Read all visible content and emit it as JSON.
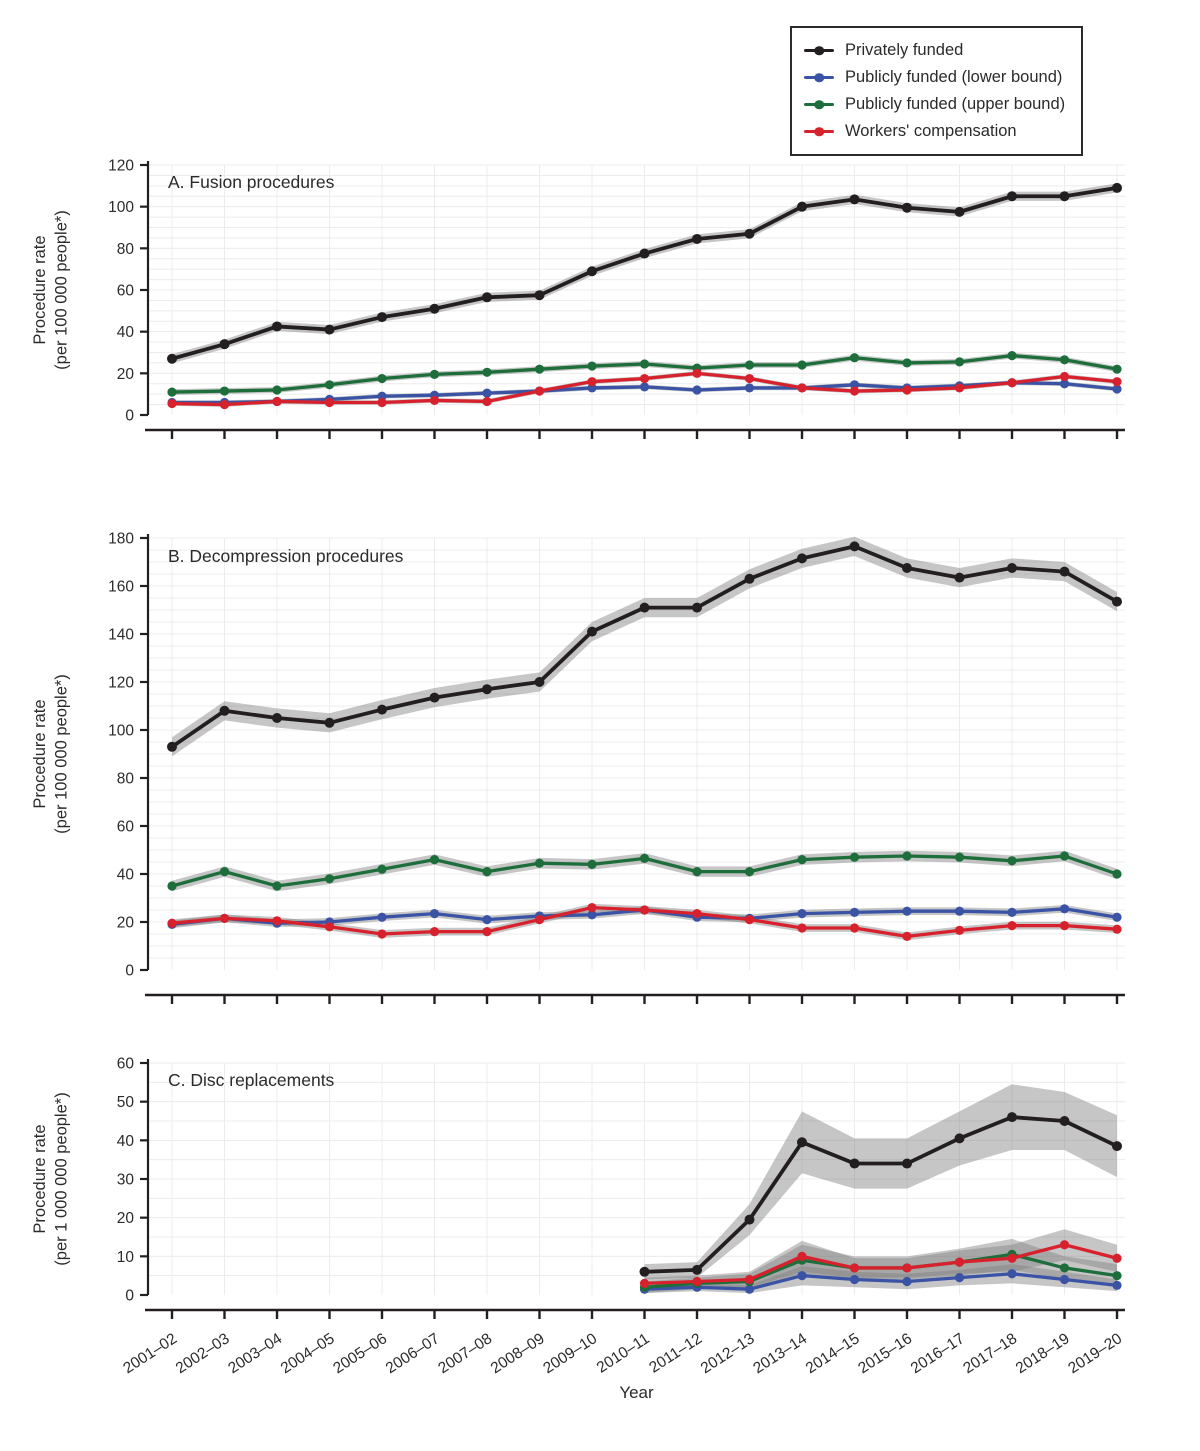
{
  "figure": {
    "xlabel": "Year",
    "x_categories": [
      "2001–02",
      "2002–03",
      "2003–04",
      "2004–05",
      "2005–06",
      "2006–07",
      "2007–08",
      "2008–09",
      "2009–10",
      "2010–11",
      "2011–12",
      "2012–13",
      "2013–14",
      "2014–15",
      "2015–16",
      "2016–17",
      "2017–18",
      "2018–19",
      "2019–20"
    ]
  },
  "colors": {
    "black": "#231f20",
    "blue": "#3a53a4",
    "green": "#1e6e3c",
    "red": "#d7222e",
    "band": "#808080",
    "grid": "#ececec",
    "axis": "#231f20",
    "text": "#2b2b2b"
  },
  "legend": {
    "items": [
      {
        "label": "Privately funded",
        "color": "#231f20"
      },
      {
        "label": "Publicly funded (lower bound)",
        "color": "#3a53a4"
      },
      {
        "label": "Publicly funded (upper bound)",
        "color": "#1e6e3c"
      },
      {
        "label": "Workers' compensation",
        "color": "#d7222e"
      }
    ]
  },
  "chart_data": [
    {
      "type": "line",
      "title": "A. Fusion procedures",
      "ylabel_lines": [
        "Procedure rate",
        "(per 100 000 people*)"
      ],
      "ylim": [
        0,
        120
      ],
      "ytick_step": 20,
      "categories": [
        "2001–02",
        "2002–03",
        "2003–04",
        "2004–05",
        "2005–06",
        "2006–07",
        "2007–08",
        "2008–09",
        "2009–10",
        "2010–11",
        "2011–12",
        "2012–13",
        "2013–14",
        "2014–15",
        "2015–16",
        "2016–17",
        "2017–18",
        "2018–19",
        "2019–20"
      ],
      "series": [
        {
          "name": "Privately funded",
          "color": "#231f20",
          "values": [
            27,
            34,
            42.5,
            41,
            47,
            51,
            56.5,
            57.5,
            69,
            77.5,
            84.5,
            87,
            100,
            103.5,
            99.5,
            97.5,
            105,
            105,
            109
          ],
          "ci_halfwidth": 2.2
        },
        {
          "name": "Publicly funded (lower bound)",
          "color": "#3a53a4",
          "values": [
            6,
            6,
            6.5,
            7.5,
            9,
            9.5,
            10.5,
            11.5,
            13,
            13.5,
            12,
            13,
            13,
            14.5,
            13,
            14,
            15.5,
            15,
            12.5
          ],
          "ci_halfwidth": 1.1
        },
        {
          "name": "Publicly funded (upper bound)",
          "color": "#1e6e3c",
          "values": [
            11,
            11.5,
            12,
            14.5,
            17.5,
            19.5,
            20.5,
            22,
            23.5,
            24.5,
            22.5,
            24,
            24,
            27.5,
            25,
            25.5,
            28.5,
            26.5,
            22
          ],
          "ci_halfwidth": 1.4
        },
        {
          "name": "Workers' compensation",
          "color": "#d7222e",
          "values": [
            5.5,
            5,
            6.5,
            6,
            6,
            7,
            6.5,
            11.5,
            16,
            17.5,
            20,
            17.5,
            13,
            11.5,
            12,
            13,
            15.5,
            18.5,
            16
          ],
          "ci_halfwidth": 1.1
        }
      ]
    },
    {
      "type": "line",
      "title": "B. Decompression procedures",
      "ylabel_lines": [
        "Procedure rate",
        "(per 100 000 people*)"
      ],
      "ylim": [
        0,
        180
      ],
      "ytick_step": 20,
      "categories": [
        "2001–02",
        "2002–03",
        "2003–04",
        "2004–05",
        "2005–06",
        "2006–07",
        "2007–08",
        "2008–09",
        "2009–10",
        "2010–11",
        "2011–12",
        "2012–13",
        "2013–14",
        "2014–15",
        "2015–16",
        "2016–17",
        "2017–18",
        "2018–19",
        "2019–20"
      ],
      "series": [
        {
          "name": "Privately funded",
          "color": "#231f20",
          "values": [
            93,
            108,
            105,
            103,
            108.5,
            113.5,
            117,
            120,
            141,
            151,
            151,
            163,
            171.5,
            176.5,
            167.5,
            163.5,
            167.5,
            166,
            153.5
          ],
          "ci_halfwidth": 4
        },
        {
          "name": "Publicly funded (lower bound)",
          "color": "#3a53a4",
          "values": [
            19,
            21.5,
            19.5,
            20,
            22,
            23.5,
            21,
            22.5,
            23,
            25,
            22,
            21.5,
            23.5,
            24,
            24.5,
            24.5,
            24,
            25.5,
            22
          ],
          "ci_halfwidth": 1.6
        },
        {
          "name": "Publicly funded (upper bound)",
          "color": "#1e6e3c",
          "values": [
            35,
            41,
            35,
            38,
            42,
            46,
            41,
            44.5,
            44,
            46.5,
            41,
            41,
            46,
            47,
            47.5,
            47,
            45.5,
            47.5,
            40
          ],
          "ci_halfwidth": 2.2
        },
        {
          "name": "Workers' compensation",
          "color": "#d7222e",
          "values": [
            19.5,
            21.5,
            20.5,
            18,
            15,
            16,
            16,
            21,
            26,
            25,
            23.5,
            21,
            17.5,
            17.5,
            14,
            16.5,
            18.5,
            18.5,
            17
          ],
          "ci_halfwidth": 1.6
        }
      ]
    },
    {
      "type": "line",
      "title": "C. Disc replacements",
      "ylabel_lines": [
        "Procedure rate",
        "(per 1 000 000 people*)"
      ],
      "ylim": [
        0,
        60
      ],
      "ytick_step": 10,
      "categories": [
        "2001–02",
        "2002–03",
        "2003–04",
        "2004–05",
        "2005–06",
        "2006–07",
        "2007–08",
        "2008–09",
        "2009–10",
        "2010–11",
        "2011–12",
        "2012–13",
        "2013–14",
        "2014–15",
        "2015–16",
        "2016–17",
        "2017–18",
        "2018–19",
        "2019–20"
      ],
      "series": [
        {
          "name": "Privately funded",
          "color": "#231f20",
          "values": [
            null,
            null,
            null,
            null,
            null,
            null,
            null,
            null,
            null,
            6,
            6.5,
            19.5,
            39.5,
            34,
            34,
            40.5,
            46,
            45,
            38.5
          ],
          "ci_halfwidth": [
            null,
            null,
            null,
            null,
            null,
            null,
            null,
            null,
            null,
            2,
            2,
            4,
            8,
            6.5,
            6.5,
            7,
            8.5,
            7.5,
            8
          ]
        },
        {
          "name": "Publicly funded (lower bound)",
          "color": "#3a53a4",
          "values": [
            null,
            null,
            null,
            null,
            null,
            null,
            null,
            null,
            null,
            1.5,
            2,
            1.5,
            5,
            4,
            3.5,
            4.5,
            5.5,
            4,
            2.5
          ],
          "ci_halfwidth": [
            null,
            null,
            null,
            null,
            null,
            null,
            null,
            null,
            null,
            1,
            1,
            1,
            2.5,
            2,
            2,
            2,
            2.5,
            2,
            1.5
          ]
        },
        {
          "name": "Publicly funded (upper bound)",
          "color": "#1e6e3c",
          "values": [
            null,
            null,
            null,
            null,
            null,
            null,
            null,
            null,
            null,
            2,
            3,
            3.5,
            9,
            7,
            7,
            8.5,
            10.5,
            7,
            5
          ],
          "ci_halfwidth": [
            null,
            null,
            null,
            null,
            null,
            null,
            null,
            null,
            null,
            1.5,
            1.5,
            2,
            4,
            3,
            3,
            3.5,
            4,
            3,
            3
          ]
        },
        {
          "name": "Workers' compensation",
          "color": "#d7222e",
          "values": [
            null,
            null,
            null,
            null,
            null,
            null,
            null,
            null,
            null,
            3,
            3.5,
            4,
            10,
            7,
            7,
            8.5,
            9.5,
            13,
            9.5
          ],
          "ci_halfwidth": [
            null,
            null,
            null,
            null,
            null,
            null,
            null,
            null,
            null,
            1.5,
            1.5,
            2,
            4,
            2.5,
            2.5,
            3,
            3.5,
            4,
            3.5
          ]
        }
      ]
    }
  ]
}
